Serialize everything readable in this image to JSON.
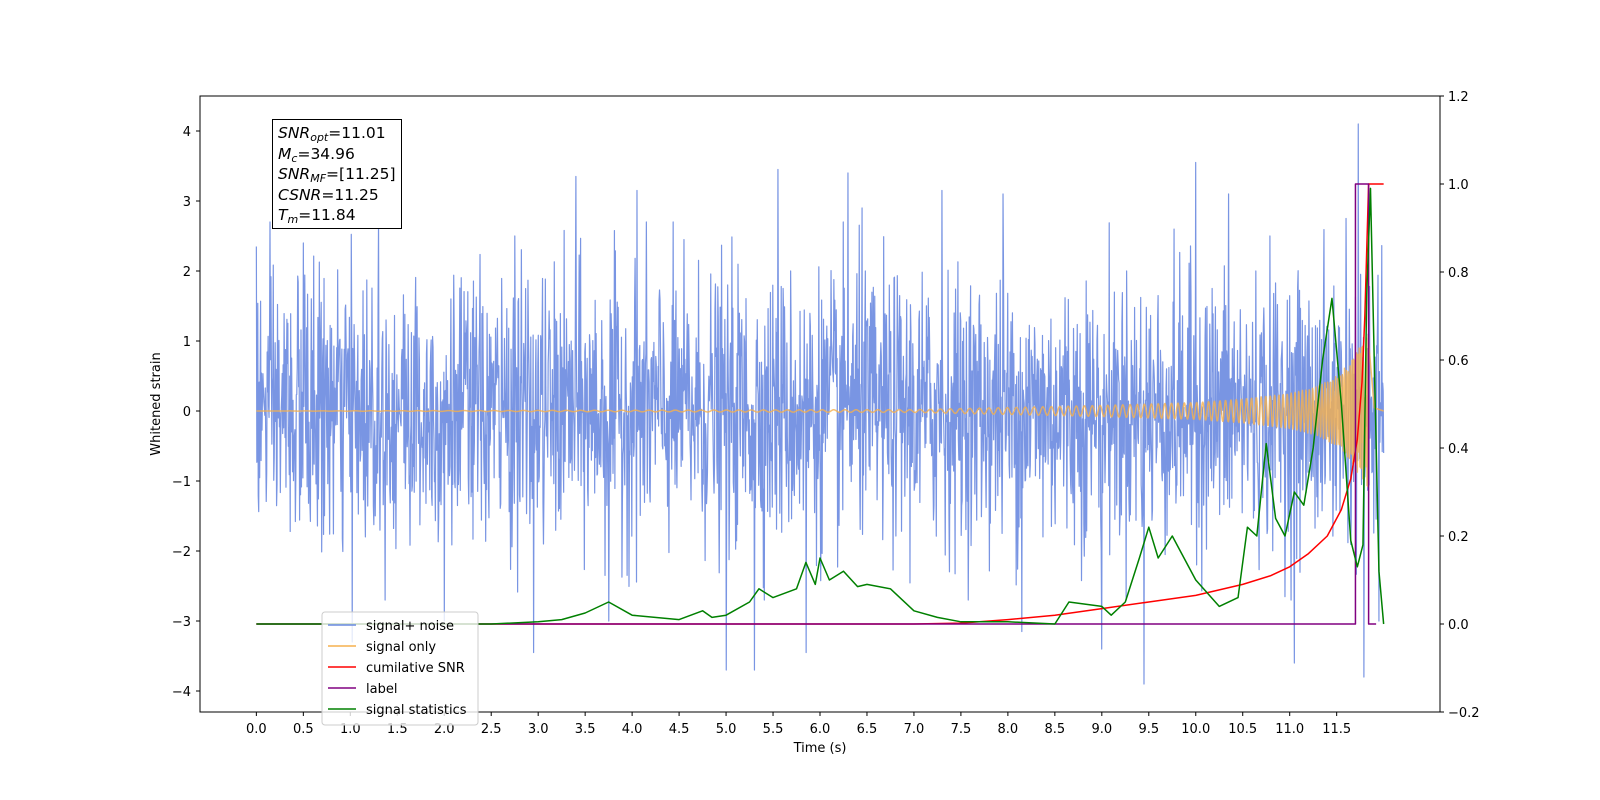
{
  "chart_data": {
    "type": "line",
    "xlabel": "Time (s)",
    "ylabel": "Whitened strain",
    "ylabel_right": "",
    "xlim": [
      -0.6,
      12.6
    ],
    "ylim": [
      -4.3,
      4.5
    ],
    "ylim_right": [
      -0.2,
      1.2
    ],
    "x_ticks": [
      "0.0",
      "0.5",
      "1.0",
      "1.5",
      "2.0",
      "2.5",
      "3.0",
      "3.5",
      "4.0",
      "4.5",
      "5.0",
      "5.5",
      "6.0",
      "6.5",
      "7.0",
      "7.5",
      "8.0",
      "8.5",
      "9.0",
      "9.5",
      "10.0",
      "10.5",
      "11.0",
      "11.5"
    ],
    "y_ticks": [
      "−4",
      "−3",
      "−2",
      "−1",
      "0",
      "1",
      "2",
      "3",
      "4"
    ],
    "y_ticks_right": [
      "−0.2",
      "0.0",
      "0.2",
      "0.4",
      "0.6",
      "0.8",
      "1.0",
      "1.2"
    ],
    "annotation": {
      "snr_opt": "11.01",
      "mc": "34.96",
      "snr_mf": "[11.25]",
      "csnr": "11.25",
      "tm": "11.84"
    },
    "legend": {
      "placement": "lower-left",
      "entries": [
        "signal+ noise",
        "signal only",
        "cumilative SNR",
        "label",
        "signal statistics"
      ]
    },
    "colors": {
      "signal_noise": "#6a89e0",
      "signal_only": "#f5b04e",
      "cumulative_snr": "#ff0000",
      "label": "#800080",
      "signal_statistics": "#008000"
    },
    "series": [
      {
        "name": "signal+ noise",
        "axis": "left",
        "kind": "noise",
        "t_start": 0.0,
        "t_end": 12.0,
        "envelope_typical": 1.5,
        "extreme_samples": [
          {
            "x": 0.0,
            "y": 2.35
          },
          {
            "x": 0.0,
            "y": -1.8
          },
          {
            "x": 0.5,
            "y": 2.4
          },
          {
            "x": 1.02,
            "y": -3.3
          },
          {
            "x": 1.3,
            "y": 2.7
          },
          {
            "x": 2.0,
            "y": -3.0
          },
          {
            "x": 2.75,
            "y": 2.5
          },
          {
            "x": 2.95,
            "y": -3.45
          },
          {
            "x": 3.4,
            "y": 3.35
          },
          {
            "x": 3.75,
            "y": -3.0
          },
          {
            "x": 4.05,
            "y": 3.15
          },
          {
            "x": 5.0,
            "y": -3.7
          },
          {
            "x": 5.3,
            "y": -3.7
          },
          {
            "x": 5.55,
            "y": 3.45
          },
          {
            "x": 5.85,
            "y": -3.45
          },
          {
            "x": 6.3,
            "y": 3.4
          },
          {
            "x": 6.45,
            "y": 2.9
          },
          {
            "x": 7.3,
            "y": 3.15
          },
          {
            "x": 7.95,
            "y": 3.1
          },
          {
            "x": 8.15,
            "y": -3.15
          },
          {
            "x": 9.0,
            "y": -3.4
          },
          {
            "x": 9.45,
            "y": -3.9
          },
          {
            "x": 10.0,
            "y": 3.55
          },
          {
            "x": 10.35,
            "y": 3.1
          },
          {
            "x": 11.05,
            "y": -3.6
          },
          {
            "x": 11.6,
            "y": 2.75
          },
          {
            "x": 11.73,
            "y": 4.1
          },
          {
            "x": 11.79,
            "y": -3.8
          },
          {
            "x": 11.95,
            "y": -3.0
          }
        ]
      },
      {
        "name": "signal only",
        "axis": "left",
        "kind": "chirp",
        "t_start": 0.0,
        "t_end": 12.0,
        "t_merger": 11.84,
        "amplitude": [
          {
            "x": 0.0,
            "y": 0.0
          },
          {
            "x": 7.0,
            "y": 0.02
          },
          {
            "x": 8.0,
            "y": 0.05
          },
          {
            "x": 9.0,
            "y": 0.08
          },
          {
            "x": 10.0,
            "y": 0.12
          },
          {
            "x": 10.5,
            "y": 0.17
          },
          {
            "x": 11.0,
            "y": 0.25
          },
          {
            "x": 11.3,
            "y": 0.35
          },
          {
            "x": 11.5,
            "y": 0.5
          },
          {
            "x": 11.65,
            "y": 0.7
          },
          {
            "x": 11.75,
            "y": 0.95
          },
          {
            "x": 11.84,
            "y": 1.1
          },
          {
            "x": 11.9,
            "y": 0.05
          },
          {
            "x": 12.0,
            "y": 0.0
          }
        ]
      },
      {
        "name": "cumilative SNR",
        "axis": "right",
        "points": [
          {
            "x": 0.0,
            "y": 0.0
          },
          {
            "x": 7.0,
            "y": 0.0
          },
          {
            "x": 7.5,
            "y": 0.002
          },
          {
            "x": 8.0,
            "y": 0.01
          },
          {
            "x": 8.5,
            "y": 0.02
          },
          {
            "x": 9.0,
            "y": 0.035
          },
          {
            "x": 9.5,
            "y": 0.05
          },
          {
            "x": 10.0,
            "y": 0.065
          },
          {
            "x": 10.5,
            "y": 0.09
          },
          {
            "x": 10.8,
            "y": 0.11
          },
          {
            "x": 11.0,
            "y": 0.13
          },
          {
            "x": 11.2,
            "y": 0.16
          },
          {
            "x": 11.4,
            "y": 0.2
          },
          {
            "x": 11.55,
            "y": 0.26
          },
          {
            "x": 11.65,
            "y": 0.33
          },
          {
            "x": 11.72,
            "y": 0.42
          },
          {
            "x": 11.77,
            "y": 0.55
          },
          {
            "x": 11.8,
            "y": 0.7
          },
          {
            "x": 11.82,
            "y": 0.85
          },
          {
            "x": 11.84,
            "y": 1.0
          },
          {
            "x": 12.0,
            "y": 1.0
          }
        ]
      },
      {
        "name": "label",
        "axis": "right",
        "points": [
          {
            "x": 0.0,
            "y": 0.0
          },
          {
            "x": 11.7,
            "y": 0.0
          },
          {
            "x": 11.7,
            "y": 1.0
          },
          {
            "x": 11.84,
            "y": 1.0
          },
          {
            "x": 11.84,
            "y": 0.0
          },
          {
            "x": 11.92,
            "y": 0.0
          }
        ]
      },
      {
        "name": "signal statistics",
        "axis": "right",
        "points": [
          {
            "x": 0.0,
            "y": 0.0
          },
          {
            "x": 1.0,
            "y": 0.0
          },
          {
            "x": 2.5,
            "y": 0.0
          },
          {
            "x": 3.0,
            "y": 0.005
          },
          {
            "x": 3.25,
            "y": 0.01
          },
          {
            "x": 3.5,
            "y": 0.025
          },
          {
            "x": 3.75,
            "y": 0.05
          },
          {
            "x": 4.0,
            "y": 0.02
          },
          {
            "x": 4.5,
            "y": 0.01
          },
          {
            "x": 4.75,
            "y": 0.03
          },
          {
            "x": 4.85,
            "y": 0.015
          },
          {
            "x": 5.0,
            "y": 0.02
          },
          {
            "x": 5.25,
            "y": 0.05
          },
          {
            "x": 5.35,
            "y": 0.08
          },
          {
            "x": 5.5,
            "y": 0.06
          },
          {
            "x": 5.75,
            "y": 0.08
          },
          {
            "x": 5.85,
            "y": 0.14
          },
          {
            "x": 5.95,
            "y": 0.09
          },
          {
            "x": 6.0,
            "y": 0.15
          },
          {
            "x": 6.1,
            "y": 0.1
          },
          {
            "x": 6.25,
            "y": 0.12
          },
          {
            "x": 6.4,
            "y": 0.085
          },
          {
            "x": 6.5,
            "y": 0.09
          },
          {
            "x": 6.75,
            "y": 0.08
          },
          {
            "x": 7.0,
            "y": 0.03
          },
          {
            "x": 7.25,
            "y": 0.015
          },
          {
            "x": 7.5,
            "y": 0.005
          },
          {
            "x": 8.0,
            "y": 0.005
          },
          {
            "x": 8.5,
            "y": 0.0
          },
          {
            "x": 8.65,
            "y": 0.05
          },
          {
            "x": 9.0,
            "y": 0.04
          },
          {
            "x": 9.1,
            "y": 0.02
          },
          {
            "x": 9.25,
            "y": 0.05
          },
          {
            "x": 9.4,
            "y": 0.15
          },
          {
            "x": 9.5,
            "y": 0.22
          },
          {
            "x": 9.6,
            "y": 0.15
          },
          {
            "x": 9.75,
            "y": 0.2
          },
          {
            "x": 10.0,
            "y": 0.1
          },
          {
            "x": 10.25,
            "y": 0.04
          },
          {
            "x": 10.45,
            "y": 0.06
          },
          {
            "x": 10.55,
            "y": 0.22
          },
          {
            "x": 10.65,
            "y": 0.2
          },
          {
            "x": 10.75,
            "y": 0.41
          },
          {
            "x": 10.85,
            "y": 0.24
          },
          {
            "x": 10.95,
            "y": 0.2
          },
          {
            "x": 11.05,
            "y": 0.3
          },
          {
            "x": 11.15,
            "y": 0.27
          },
          {
            "x": 11.25,
            "y": 0.4
          },
          {
            "x": 11.35,
            "y": 0.6
          },
          {
            "x": 11.45,
            "y": 0.74
          },
          {
            "x": 11.55,
            "y": 0.5
          },
          {
            "x": 11.65,
            "y": 0.19
          },
          {
            "x": 11.72,
            "y": 0.13
          },
          {
            "x": 11.78,
            "y": 0.18
          },
          {
            "x": 11.82,
            "y": 0.75
          },
          {
            "x": 11.86,
            "y": 0.99
          },
          {
            "x": 11.9,
            "y": 0.6
          },
          {
            "x": 11.95,
            "y": 0.12
          },
          {
            "x": 12.0,
            "y": 0.0
          }
        ]
      }
    ]
  }
}
